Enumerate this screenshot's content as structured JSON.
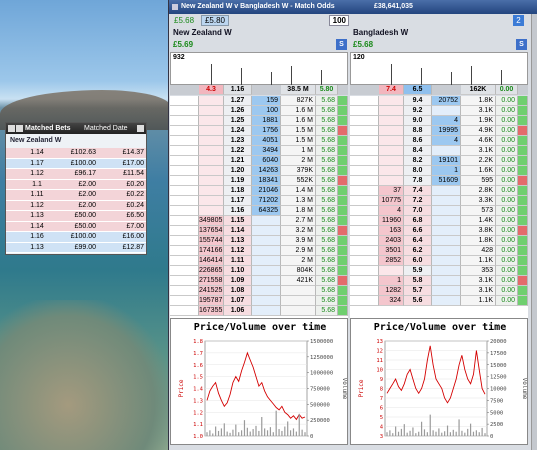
{
  "window": {
    "title": "New Zealand W v Bangladesh W - Match Odds",
    "matched": "£38,641,035",
    "back_total": "£5.68",
    "lay_total": "£5.80",
    "stake": "100",
    "tab": "2"
  },
  "runners": [
    {
      "name": "New Zealand W",
      "pl": "£5.69",
      "button": "S",
      "depth": "932",
      "header": [
        "4.3",
        "1.16",
        "38.5 M",
        "5.80"
      ],
      "ladder": [
        [
          null,
          "1.27",
          "159",
          "827K",
          "5.68"
        ],
        [
          null,
          "1.26",
          "100",
          "1.6 M",
          "5.68"
        ],
        [
          null,
          "1.25",
          "1881",
          "1.6 M",
          "5.68"
        ],
        [
          null,
          "1.24",
          "1756",
          "1.5 M",
          "5.68"
        ],
        [
          null,
          "1.23",
          "4051",
          "1.5 M",
          "5.68"
        ],
        [
          null,
          "1.22",
          "3494",
          "1 M",
          "5.68"
        ],
        [
          null,
          "1.21",
          "6040",
          "2 M",
          "5.68"
        ],
        [
          null,
          "1.20",
          "14263",
          "379K",
          "5.68"
        ],
        [
          null,
          "1.19",
          "18341",
          "552K",
          "5.68"
        ],
        [
          null,
          "1.18",
          "21046",
          "1.4 M",
          "5.68"
        ],
        [
          null,
          "1.17",
          "71202",
          "1.3 M",
          "5.68"
        ],
        [
          null,
          "1.16",
          "64325",
          "1.8 M",
          "5.68"
        ],
        [
          "349805",
          "1.15",
          null,
          "2.7 M",
          "5.68"
        ],
        [
          "137654",
          "1.14",
          null,
          "3.2 M",
          "5.68"
        ],
        [
          "155744",
          "1.13",
          null,
          "3.9 M",
          "5.68"
        ],
        [
          "174166",
          "1.12",
          null,
          "2.9 M",
          "5.68"
        ],
        [
          "146414",
          "1.11",
          null,
          "2 M",
          "5.68"
        ],
        [
          "226865",
          "1.10",
          null,
          "804K",
          "5.68"
        ],
        [
          "271558",
          "1.09",
          null,
          "421K",
          "5.68"
        ],
        [
          "241525",
          "1.08",
          null,
          null,
          "5.68"
        ],
        [
          "195787",
          "1.07",
          null,
          null,
          "5.68"
        ],
        [
          "167355",
          "1.06",
          null,
          null,
          "5.68"
        ]
      ]
    },
    {
      "name": "Bangladesh W",
      "pl": "£5.68",
      "button": "S",
      "depth": "120",
      "header": [
        "7.4",
        "6.5",
        "162K",
        "0.00"
      ],
      "ladder": [
        [
          null,
          "9.4",
          "20752",
          "1.8K",
          "0.00"
        ],
        [
          null,
          "9.2",
          null,
          "3.1K",
          "0.00"
        ],
        [
          null,
          "9.0",
          "4",
          "1.9K",
          "0.00"
        ],
        [
          null,
          "8.8",
          "19995",
          "4.9K",
          "0.00"
        ],
        [
          null,
          "8.6",
          "4",
          "4.6K",
          "0.00"
        ],
        [
          null,
          "8.4",
          null,
          "3.1K",
          "0.00"
        ],
        [
          null,
          "8.2",
          "19101",
          "2.2K",
          "0.00"
        ],
        [
          null,
          "8.0",
          "1",
          "1.6K",
          "0.00"
        ],
        [
          null,
          "7.8",
          "51609",
          "595",
          "0.00"
        ],
        [
          "37",
          "7.4",
          null,
          "2.8K",
          "0.00"
        ],
        [
          "10775",
          "7.2",
          null,
          "3.3K",
          "0.00"
        ],
        [
          "4",
          "7.0",
          null,
          "573",
          "0.00"
        ],
        [
          "11960",
          "6.8",
          null,
          "1.4K",
          "0.00"
        ],
        [
          "163",
          "6.6",
          null,
          "3.8K",
          "0.00"
        ],
        [
          "2403",
          "6.4",
          null,
          "1.8K",
          "0.00"
        ],
        [
          "3501",
          "6.2",
          null,
          "428",
          "0.00"
        ],
        [
          "2852",
          "6.0",
          null,
          "1.1K",
          "0.00"
        ],
        [
          null,
          "5.9",
          null,
          "353",
          "0.00"
        ],
        [
          "1",
          "5.8",
          null,
          "3.1K",
          "0.00"
        ],
        [
          "1282",
          "5.7",
          null,
          "3.1K",
          "0.00"
        ],
        [
          "324",
          "5.6",
          null,
          "1.1K",
          "0.00"
        ]
      ]
    }
  ],
  "matched_bets": {
    "title": "Matched Bets",
    "sort": "Matched Date",
    "runner": "New Zealand W",
    "rows": [
      {
        "cells": [
          "1.14",
          "£102.63",
          "£14.37"
        ],
        "color": "#f3d4d8"
      },
      {
        "cells": [
          "1.17",
          "£100.00",
          "£17.00"
        ],
        "color": "#cfe2f5"
      },
      {
        "cells": [
          "1.12",
          "£96.17",
          "£11.54"
        ],
        "color": "#f3d4d8"
      },
      {
        "cells": [
          "1.1",
          "£2.00",
          "£0.20"
        ],
        "color": "#f3d4d8"
      },
      {
        "cells": [
          "1.11",
          "£2.00",
          "£0.22"
        ],
        "color": "#f3d4d8"
      },
      {
        "cells": [
          "1.12",
          "£2.00",
          "£0.24"
        ],
        "color": "#f3d4d8"
      },
      {
        "cells": [
          "1.13",
          "£50.00",
          "£6.50"
        ],
        "color": "#f3d4d8"
      },
      {
        "cells": [
          "1.14",
          "£50.00",
          "£7.00"
        ],
        "color": "#f3d4d8"
      },
      {
        "cells": [
          "1.16",
          "£100.00",
          "£16.00"
        ],
        "color": "#cfe2f5"
      },
      {
        "cells": [
          "1.13",
          "£99.00",
          "£12.87"
        ],
        "color": "#cfe2f5"
      }
    ]
  },
  "chart_data": [
    {
      "type": "line",
      "title": "Price/Volume over time",
      "ylabel": "Price",
      "y2label": "Volume",
      "ylim": [
        1.0,
        1.8
      ],
      "yticks": [
        {
          "value": 1.0,
          "label": "1.0"
        },
        1.1,
        1.2,
        1.3,
        1.4,
        1.5,
        1.6,
        1.7,
        1.8
      ],
      "y2lim": [
        0,
        1500000
      ],
      "y2ticks": [
        0,
        250000,
        500000,
        750000,
        1000000,
        1250000,
        1500000
      ],
      "series": [
        {
          "color": "#d40000",
          "values": [
            1.3,
            1.38,
            1.42,
            1.45,
            1.36,
            1.3,
            1.25,
            1.28,
            1.35,
            1.45,
            1.5,
            1.46,
            1.55,
            1.62,
            1.7,
            1.64,
            1.58,
            1.5,
            1.42,
            1.45,
            1.38,
            1.33,
            1.3,
            1.27,
            1.24,
            1.22,
            1.25,
            1.2,
            1.18,
            1.15,
            1.17,
            1.14,
            1.18,
            1.15,
            1.16
          ]
        },
        {
          "color": "#9a9a9a",
          "axis": "y2",
          "values": [
            60000,
            90000,
            40000,
            150000,
            80000,
            120000,
            200000,
            70000,
            50000,
            100000,
            180000,
            60000,
            90000,
            250000,
            130000,
            70000,
            110000,
            160000,
            80000,
            300000,
            120000,
            90000,
            140000,
            60000,
            400000,
            110000,
            80000,
            150000,
            230000,
            90000,
            120000,
            70000,
            350000,
            100000,
            60000
          ]
        }
      ]
    },
    {
      "type": "line",
      "title": "Price/Volume over time",
      "ylabel": "Price",
      "y2label": "Volume",
      "ylim": [
        3,
        13
      ],
      "yticks": [
        3,
        4,
        5,
        6,
        7,
        8,
        9,
        10,
        11,
        12,
        13
      ],
      "y2lim": [
        0,
        20000
      ],
      "y2ticks": [
        0,
        2500,
        5000,
        7500,
        10000,
        12500,
        15000,
        17500,
        20000
      ],
      "series": [
        {
          "color": "#d40000",
          "values": [
            7.5,
            8,
            8.5,
            9,
            8.2,
            7.8,
            8.5,
            9.5,
            10,
            9,
            8,
            7.5,
            8,
            9,
            11,
            12.5,
            10.5,
            9,
            8.5,
            8,
            7,
            6.5,
            7,
            8,
            9,
            10.5,
            11.5,
            10,
            9,
            8.5,
            9.5,
            12,
            10,
            8,
            7.4
          ]
        },
        {
          "color": "#9a9a9a",
          "axis": "y2",
          "values": [
            800,
            1200,
            600,
            2000,
            900,
            1500,
            2500,
            700,
            1100,
            1800,
            600,
            900,
            3000,
            1400,
            800,
            4500,
            1200,
            900,
            1600,
            700,
            1000,
            2200,
            800,
            1300,
            900,
            3500,
            1100,
            700,
            1500,
            2600,
            900,
            1200,
            800,
            1700,
            600
          ]
        }
      ]
    }
  ]
}
